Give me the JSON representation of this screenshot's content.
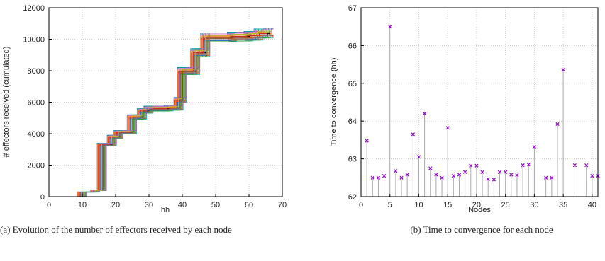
{
  "captions": {
    "left": "(a) Evolution of the number of effectors received by each node",
    "right": "(b) Time to convergence for each node"
  },
  "chart_data": [
    {
      "type": "line",
      "xlabel": "hh",
      "ylabel": "# effectors received (cumulated)",
      "xlim": [
        0,
        70
      ],
      "ylim": [
        0,
        12000
      ],
      "xticks": [
        "0",
        "10",
        "20",
        "30",
        "40",
        "50",
        "60",
        "70"
      ],
      "yticks": [
        "0",
        "2000",
        "4000",
        "6000",
        "8000",
        "10000",
        "12000"
      ],
      "grid": true,
      "series_count": 41,
      "x": [
        0,
        10,
        14,
        16,
        19,
        21,
        25,
        28,
        30,
        36,
        39,
        40,
        44,
        47,
        55,
        60,
        63,
        66
      ],
      "series": [
        {
          "values": [
            0,
            300,
            400,
            3400,
            3900,
            4200,
            5200,
            5600,
            5750,
            5800,
            6300,
            8200,
            9400,
            10400,
            10450,
            10500,
            10650,
            10700
          ]
        }
      ]
    },
    {
      "type": "scatter",
      "xlabel": "Nodes",
      "ylabel": "Time to convergence (hh)",
      "xlim": [
        0,
        41
      ],
      "ylim": [
        62,
        67
      ],
      "xticks": [
        "0",
        "5",
        "10",
        "15",
        "20",
        "25",
        "30",
        "35",
        "40"
      ],
      "yticks": [
        "62",
        "63",
        "64",
        "65",
        "66",
        "67"
      ],
      "grid": true,
      "marker": "x",
      "color": "#9400d3",
      "x": [
        1,
        2,
        3,
        4,
        5,
        6,
        7,
        8,
        9,
        10,
        11,
        12,
        13,
        14,
        15,
        16,
        17,
        18,
        19,
        20,
        21,
        22,
        23,
        24,
        25,
        26,
        27,
        28,
        29,
        30,
        32,
        33,
        34,
        35,
        37,
        39,
        40,
        41
      ],
      "values": [
        63.48,
        62.5,
        62.5,
        62.55,
        66.5,
        62.68,
        62.5,
        62.58,
        63.65,
        63.05,
        64.2,
        62.75,
        62.58,
        62.5,
        63.82,
        62.55,
        62.58,
        62.65,
        62.82,
        62.82,
        62.65,
        62.46,
        62.45,
        62.65,
        62.65,
        62.58,
        62.57,
        62.83,
        62.85,
        63.32,
        62.5,
        62.5,
        63.92,
        65.36,
        62.83,
        62.83,
        62.55,
        62.55
      ]
    }
  ]
}
